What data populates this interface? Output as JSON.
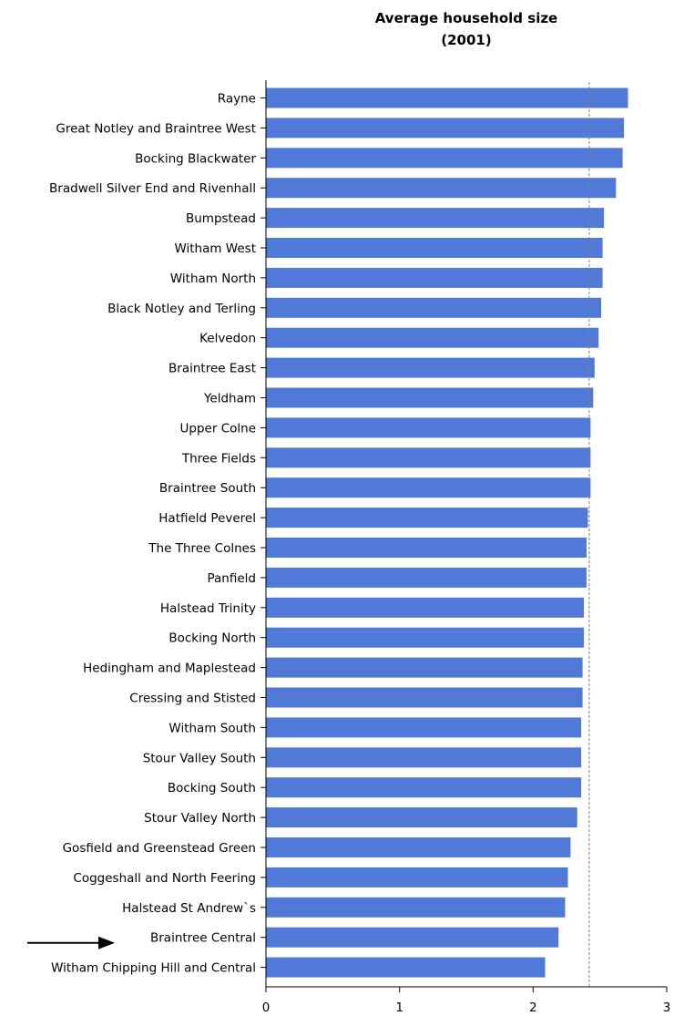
{
  "chart_data": {
    "type": "bar",
    "orientation": "horizontal",
    "title": [
      "Average household size",
      "(2001)"
    ],
    "xlabel": "",
    "ylabel": "",
    "xlim": [
      0,
      3
    ],
    "x_ticks": [
      "0",
      "1",
      "2",
      "3"
    ],
    "grid": false,
    "legend": "none",
    "bar_color": "#5079d8",
    "reference_line": {
      "value": 2.42,
      "style": "dashed",
      "color": "#808080"
    },
    "highlighted_category": "Braintree Central",
    "highlight_marker": "arrow-icon",
    "categories": [
      "Rayne",
      "Great Notley and Braintree West",
      "Bocking Blackwater",
      "Bradwell Silver End and Rivenhall",
      "Bumpstead",
      "Witham West",
      "Witham North",
      "Black Notley and Terling",
      "Kelvedon",
      "Braintree East",
      "Yeldham",
      "Upper Colne",
      "Three Fields",
      "Braintree South",
      "Hatfield Peverel",
      "The Three Colnes",
      "Panfield",
      "Halstead Trinity",
      "Bocking North",
      "Hedingham and Maplestead",
      "Cressing and Stisted",
      "Witham South",
      "Stour Valley South",
      "Bocking South",
      "Stour Valley North",
      "Gosfield and Greenstead Green",
      "Coggeshall and North Feering",
      "Halstead St Andrew`s",
      "Braintree Central",
      "Witham Chipping Hill and Central"
    ],
    "values": [
      2.71,
      2.68,
      2.67,
      2.62,
      2.53,
      2.52,
      2.52,
      2.51,
      2.49,
      2.46,
      2.45,
      2.43,
      2.43,
      2.43,
      2.41,
      2.4,
      2.4,
      2.38,
      2.38,
      2.37,
      2.37,
      2.36,
      2.36,
      2.36,
      2.33,
      2.28,
      2.26,
      2.24,
      2.19,
      2.09
    ]
  }
}
